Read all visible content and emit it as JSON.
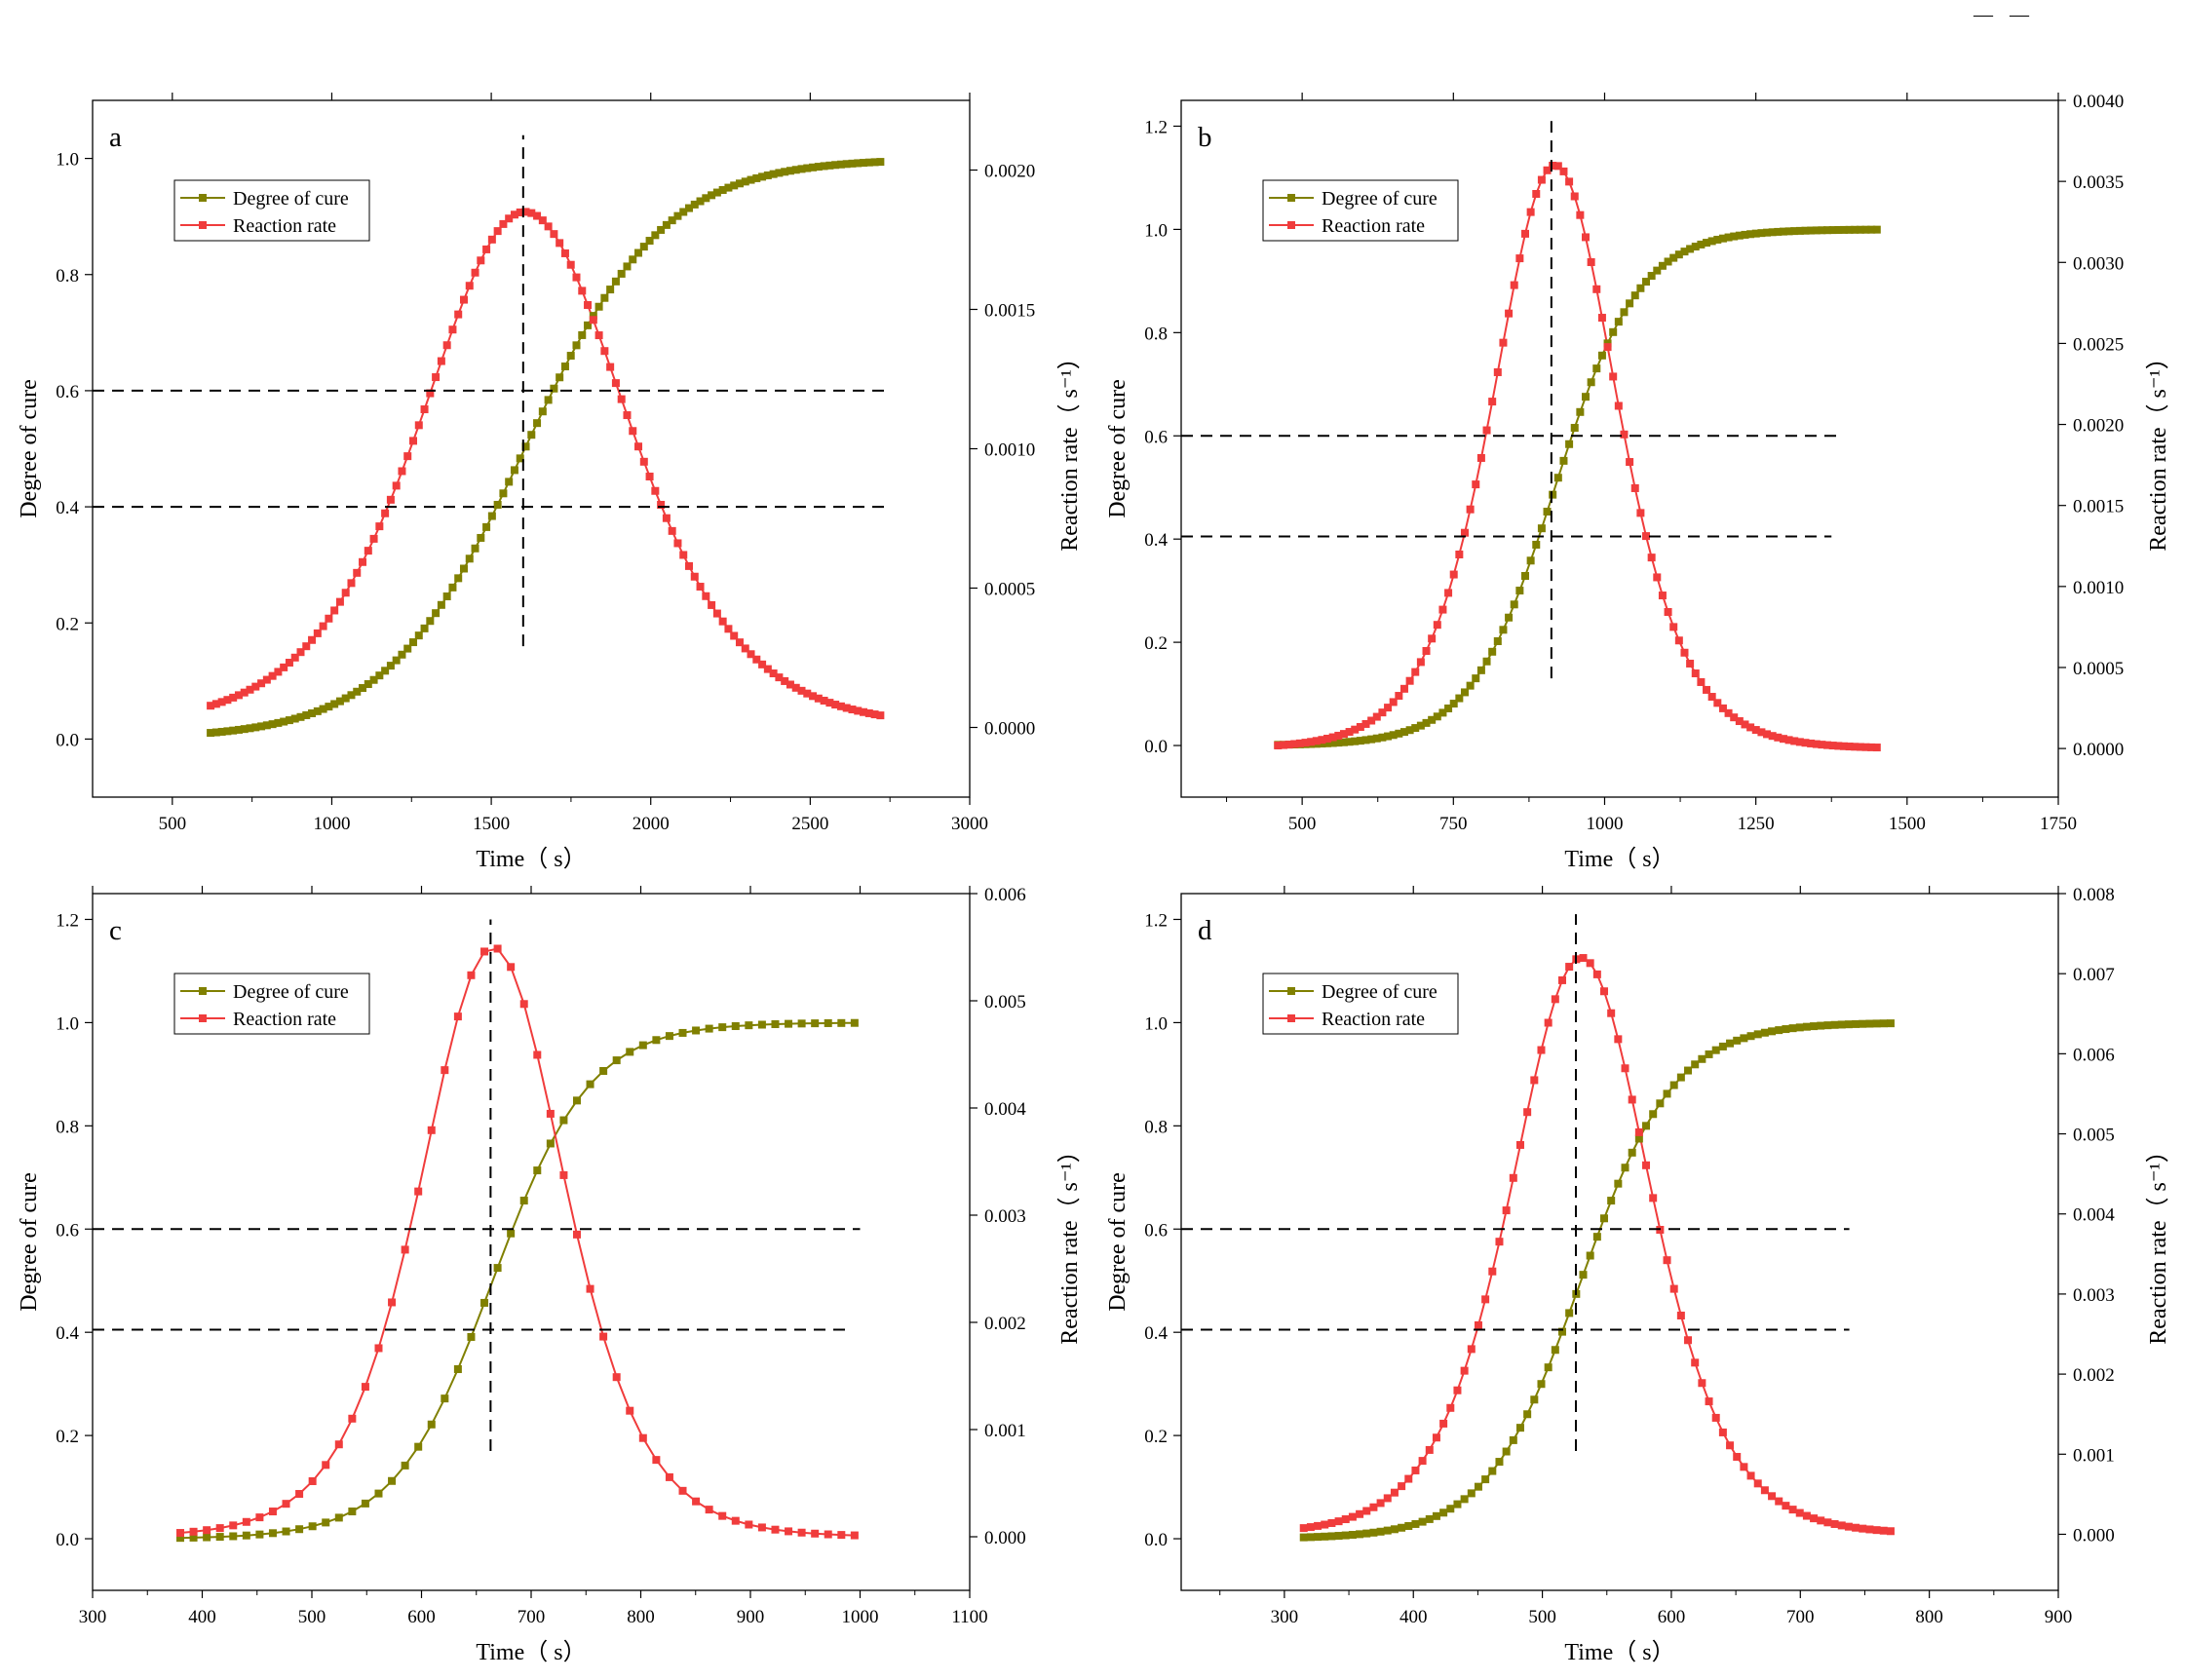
{
  "corner_mark": "— —",
  "colors": {
    "cure": "#808000",
    "rate": "#f03c3c",
    "guide": "#000000"
  },
  "chart_data": [
    {
      "type": "line",
      "label": "a",
      "xlabel": "Time（ s）",
      "ylabel": "Degree of cure",
      "y2label": "Reaction rate（ s⁻¹）",
      "xlim": [
        250,
        3000
      ],
      "ylim": [
        -0.1,
        1.1
      ],
      "y2lim": [
        -0.00025,
        0.00225
      ],
      "xticks": [
        "500",
        "1000",
        "1500",
        "2000",
        "2500",
        "3000"
      ],
      "yticks": [
        "0.0",
        "0.2",
        "0.4",
        "0.6",
        "0.8",
        "1.0"
      ],
      "y2ticks": [
        "0.0000",
        "0.0005",
        "0.0010",
        "0.0015",
        "0.0020"
      ],
      "legend": [
        "Degree of cure",
        "Reaction rate"
      ],
      "x_start": 620,
      "x_end": 2720,
      "t_peak": 1605,
      "k": 0.0046,
      "peak_rate": 0.00185,
      "n_points": 120,
      "guide_v": {
        "x": 1600,
        "y": [
          0.16,
          1.04
        ]
      },
      "guide_h": [
        {
          "y": 0.6,
          "x": [
            250,
            2740
          ]
        },
        {
          "y": 0.4,
          "x": [
            250,
            2740
          ]
        }
      ],
      "series": [
        {
          "name": "Degree of cure",
          "shape": "sigmoid"
        },
        {
          "name": "Reaction rate",
          "shape": "bell"
        }
      ]
    },
    {
      "type": "line",
      "label": "b",
      "xlabel": "Time（ s）",
      "ylabel": "Degree of cure",
      "y2label": "Reaction rate（ s⁻¹）",
      "xlim": [
        300,
        1750
      ],
      "ylim": [
        -0.1,
        1.25
      ],
      "y2lim": [
        -0.0003,
        0.004
      ],
      "xticks": [
        "500",
        "750",
        "1000",
        "1250",
        "1500",
        "1750"
      ],
      "yticks": [
        "0.0",
        "0.2",
        "0.4",
        "0.6",
        "0.8",
        "1.0",
        "1.2"
      ],
      "y2ticks": [
        "0.0000",
        "0.0005",
        "0.0010",
        "0.0015",
        "0.0020",
        "0.0025",
        "0.0030",
        "0.0035",
        "0.0040"
      ],
      "legend": [
        "Degree of cure",
        "Reaction rate"
      ],
      "x_start": 460,
      "x_end": 1450,
      "t_peak": 918,
      "k": 0.0145,
      "peak_rate": 0.0036,
      "n_points": 110,
      "guide_v": {
        "x": 912,
        "y": [
          0.13,
          1.21
        ]
      },
      "guide_h": [
        {
          "y": 0.6,
          "x": [
            300,
            1385
          ]
        },
        {
          "y": 0.405,
          "x": [
            300,
            1375
          ]
        }
      ],
      "series": [
        {
          "name": "Degree of cure",
          "shape": "sigmoid"
        },
        {
          "name": "Reaction rate",
          "shape": "bell"
        }
      ]
    },
    {
      "type": "line",
      "label": "c",
      "xlabel": "Time（ s）",
      "ylabel": "Degree of cure",
      "y2label": "Reaction rate（ s⁻¹）",
      "xlim": [
        300,
        1100
      ],
      "ylim": [
        -0.1,
        1.25
      ],
      "y2lim": [
        -0.0005,
        0.006
      ],
      "xticks": [
        "300",
        "400",
        "500",
        "600",
        "700",
        "800",
        "900",
        "1000",
        "1100"
      ],
      "yticks": [
        "0.0",
        "0.2",
        "0.4",
        "0.6",
        "0.8",
        "1.0",
        "1.2"
      ],
      "y2ticks": [
        "0.000",
        "0.001",
        "0.002",
        "0.003",
        "0.004",
        "0.005",
        "0.006"
      ],
      "legend": [
        "Degree of cure",
        "Reaction rate"
      ],
      "x_start": 380,
      "x_end": 995,
      "t_peak": 665,
      "k": 0.0225,
      "peak_rate": 0.0055,
      "n_points": 52,
      "guide_v": {
        "x": 663,
        "y": [
          0.17,
          1.2
        ]
      },
      "guide_h": [
        {
          "y": 0.6,
          "x": [
            300,
            1000
          ]
        },
        {
          "y": 0.405,
          "x": [
            300,
            992
          ]
        }
      ],
      "series": [
        {
          "name": "Degree of cure",
          "shape": "sigmoid"
        },
        {
          "name": "Reaction rate",
          "shape": "bell"
        }
      ]
    },
    {
      "type": "line",
      "label": "d",
      "xlabel": "Time（ s）",
      "ylabel": "Degree of cure",
      "y2label": "Reaction rate（ s⁻¹）",
      "xlim": [
        220,
        900
      ],
      "ylim": [
        -0.1,
        1.25
      ],
      "y2lim": [
        -0.0007,
        0.008
      ],
      "xticks": [
        "300",
        "400",
        "500",
        "600",
        "700",
        "800",
        "900"
      ],
      "yticks": [
        "0.0",
        "0.2",
        "0.4",
        "0.6",
        "0.8",
        "1.0",
        "1.2"
      ],
      "y2ticks": [
        "0.000",
        "0.001",
        "0.002",
        "0.003",
        "0.004",
        "0.005",
        "0.006",
        "0.007",
        "0.008"
      ],
      "legend": [
        "Degree of cure",
        "Reaction rate"
      ],
      "x_start": 315,
      "x_end": 770,
      "t_peak": 530,
      "k": 0.0275,
      "peak_rate": 0.0072,
      "n_points": 85,
      "guide_v": {
        "x": 526,
        "y": [
          0.17,
          1.21
        ]
      },
      "guide_h": [
        {
          "y": 0.6,
          "x": [
            220,
            738
          ]
        },
        {
          "y": 0.405,
          "x": [
            220,
            738
          ]
        }
      ],
      "series": [
        {
          "name": "Degree of cure",
          "shape": "sigmoid"
        },
        {
          "name": "Reaction rate",
          "shape": "bell"
        }
      ]
    }
  ]
}
